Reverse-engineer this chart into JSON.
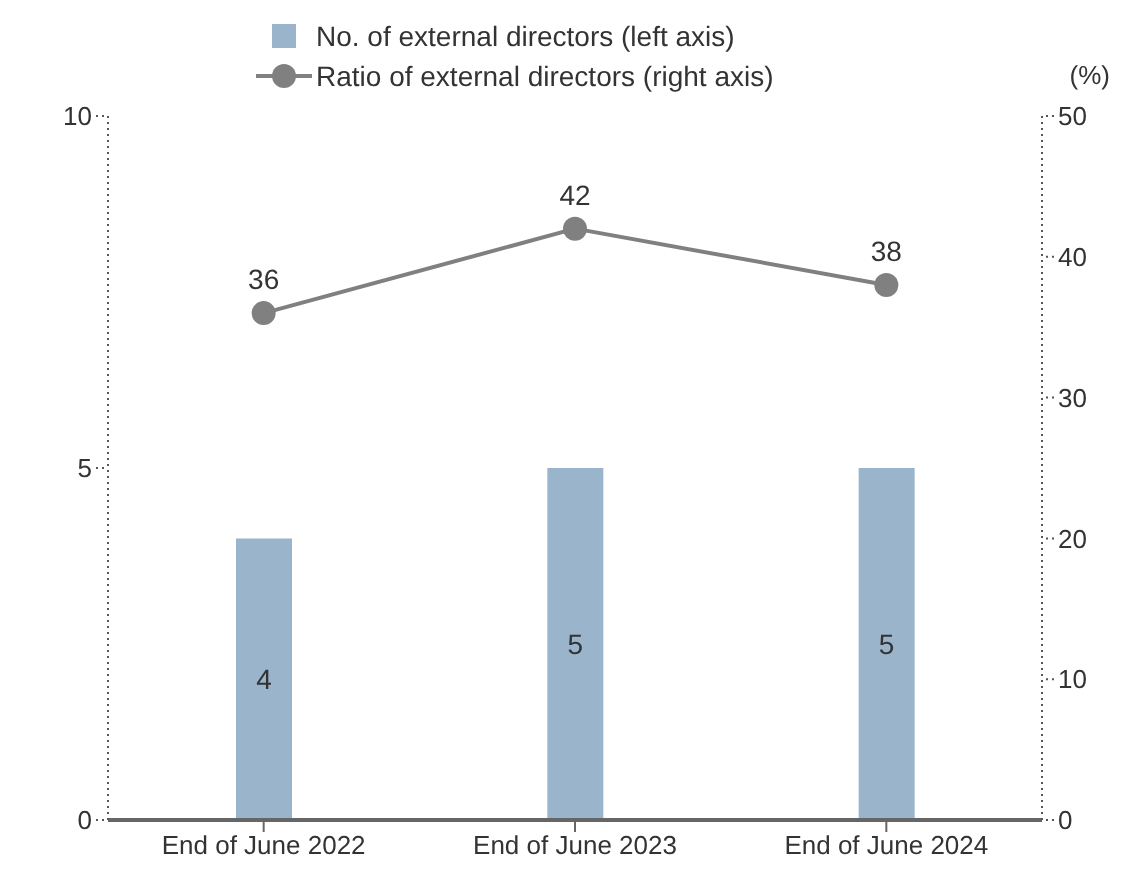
{
  "chart_data": {
    "type": "bar",
    "categories": [
      "End of June 2022",
      "End of June 2023",
      "End of June 2024"
    ],
    "series": [
      {
        "name": "No. of external directors (left axis)",
        "color": "#9ab4cb",
        "values": [
          4,
          5,
          5
        ]
      },
      {
        "name": "Ratio of external directors (right axis)",
        "type": "line",
        "axis": "y2",
        "color": "#808080",
        "values": [
          36,
          42,
          38
        ]
      }
    ],
    "y2label": "(%)",
    "ylim": [
      0,
      10
    ],
    "yticks": [
      0,
      5,
      10
    ],
    "y2lim": [
      0,
      50
    ],
    "y2ticks": [
      0,
      10,
      20,
      30,
      40,
      50
    ],
    "data_labels": true,
    "legend": "top",
    "marker": "circle"
  }
}
